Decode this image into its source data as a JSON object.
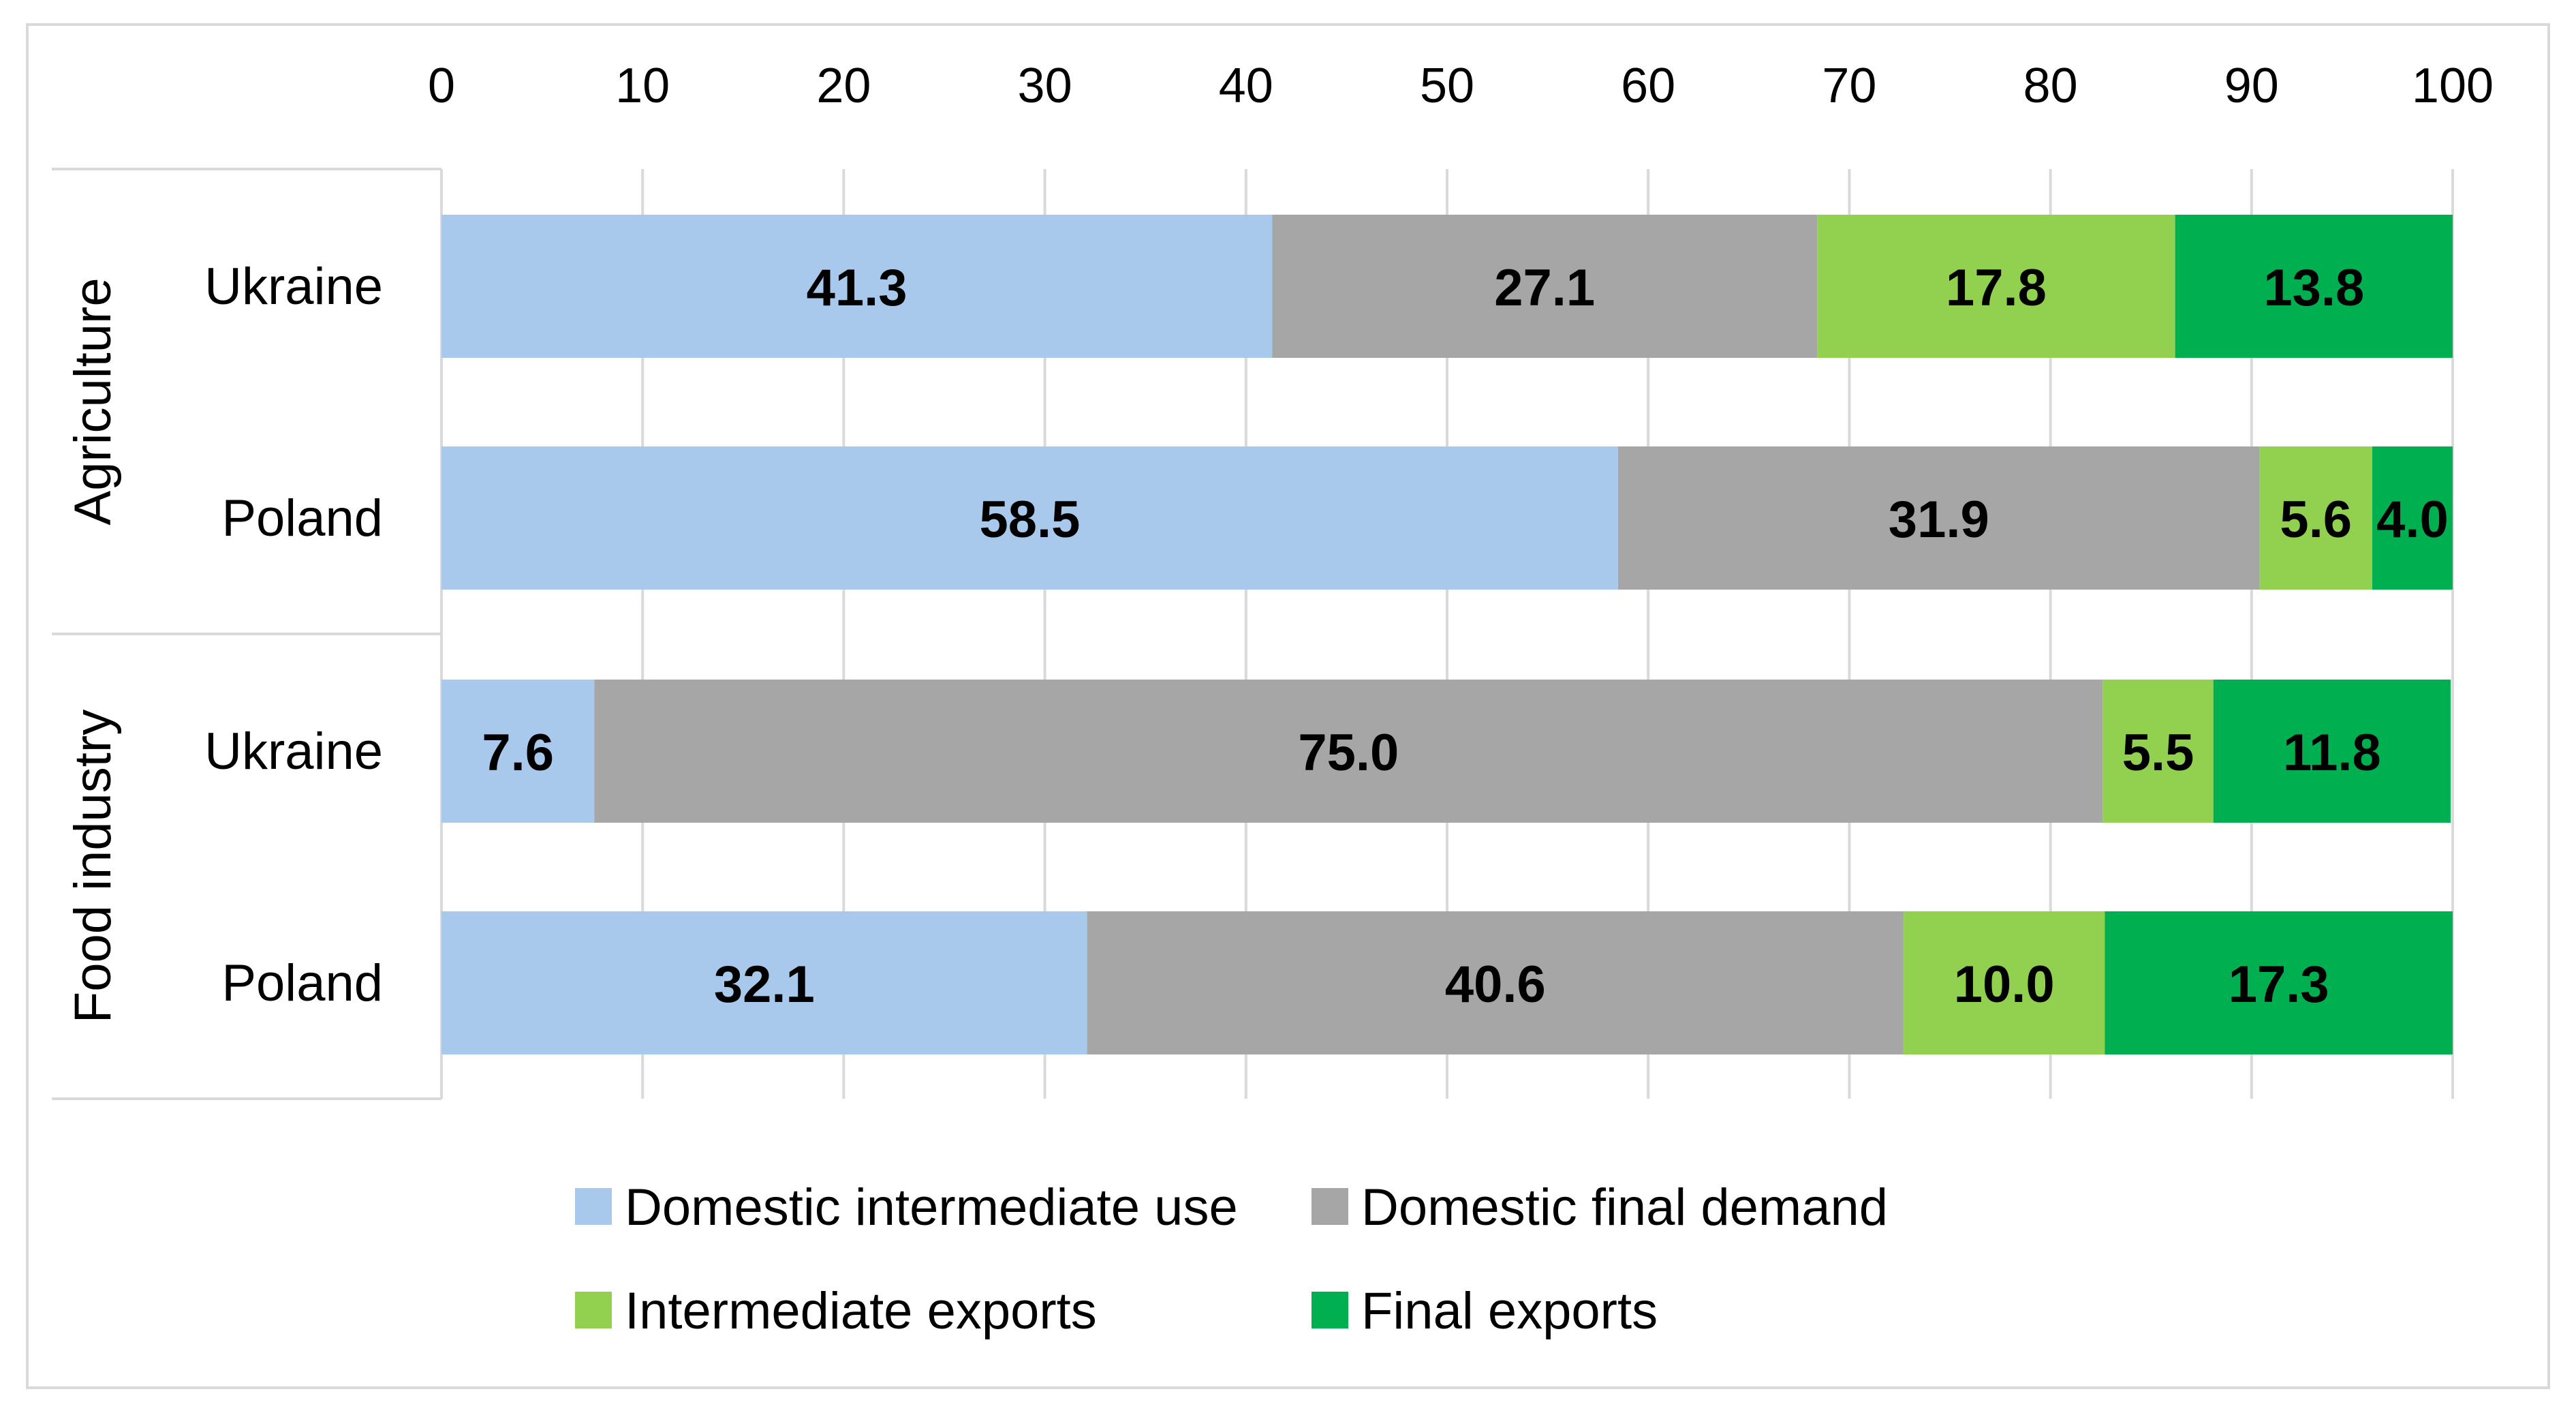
{
  "chart_data": {
    "type": "bar",
    "orientation": "horizontal",
    "stacked": true,
    "title": "",
    "xlabel": "",
    "ylabel": "",
    "xlim": [
      0,
      100
    ],
    "x_ticks": [
      0,
      10,
      20,
      30,
      40,
      50,
      60,
      70,
      80,
      90,
      100
    ],
    "x_axis_position": "top",
    "grid": true,
    "legend_position": "bottom",
    "groups": [
      {
        "name": "Agriculture",
        "categories": [
          "Ukraine",
          "Poland"
        ]
      },
      {
        "name": "Food industry",
        "categories": [
          "Ukraine",
          "Poland"
        ]
      }
    ],
    "categories": [
      "Agriculture - Ukraine",
      "Agriculture - Poland",
      "Food industry - Ukraine",
      "Food industry - Poland"
    ],
    "series": [
      {
        "name": "Domestic intermediate use",
        "color": "#a9c9ec",
        "values": [
          41.3,
          58.5,
          7.6,
          32.1
        ],
        "labels": [
          "41.3",
          "58.5",
          "7.6",
          "32.1"
        ]
      },
      {
        "name": "Domestic final demand",
        "color": "#a6a6a6",
        "values": [
          27.1,
          31.9,
          75.0,
          40.6
        ],
        "labels": [
          "27.1",
          "31.9",
          "75.0",
          "40.6"
        ]
      },
      {
        "name": "Intermediate exports",
        "color": "#92d050",
        "values": [
          17.8,
          5.6,
          5.5,
          10.0
        ],
        "labels": [
          "17.8",
          "5.6",
          "5.5",
          "10.0"
        ]
      },
      {
        "name": "Final exports",
        "color": "#00b050",
        "values": [
          13.8,
          4.0,
          11.8,
          17.3
        ],
        "labels": [
          "13.8",
          "4.0",
          "11.8",
          "17.3"
        ]
      }
    ]
  }
}
